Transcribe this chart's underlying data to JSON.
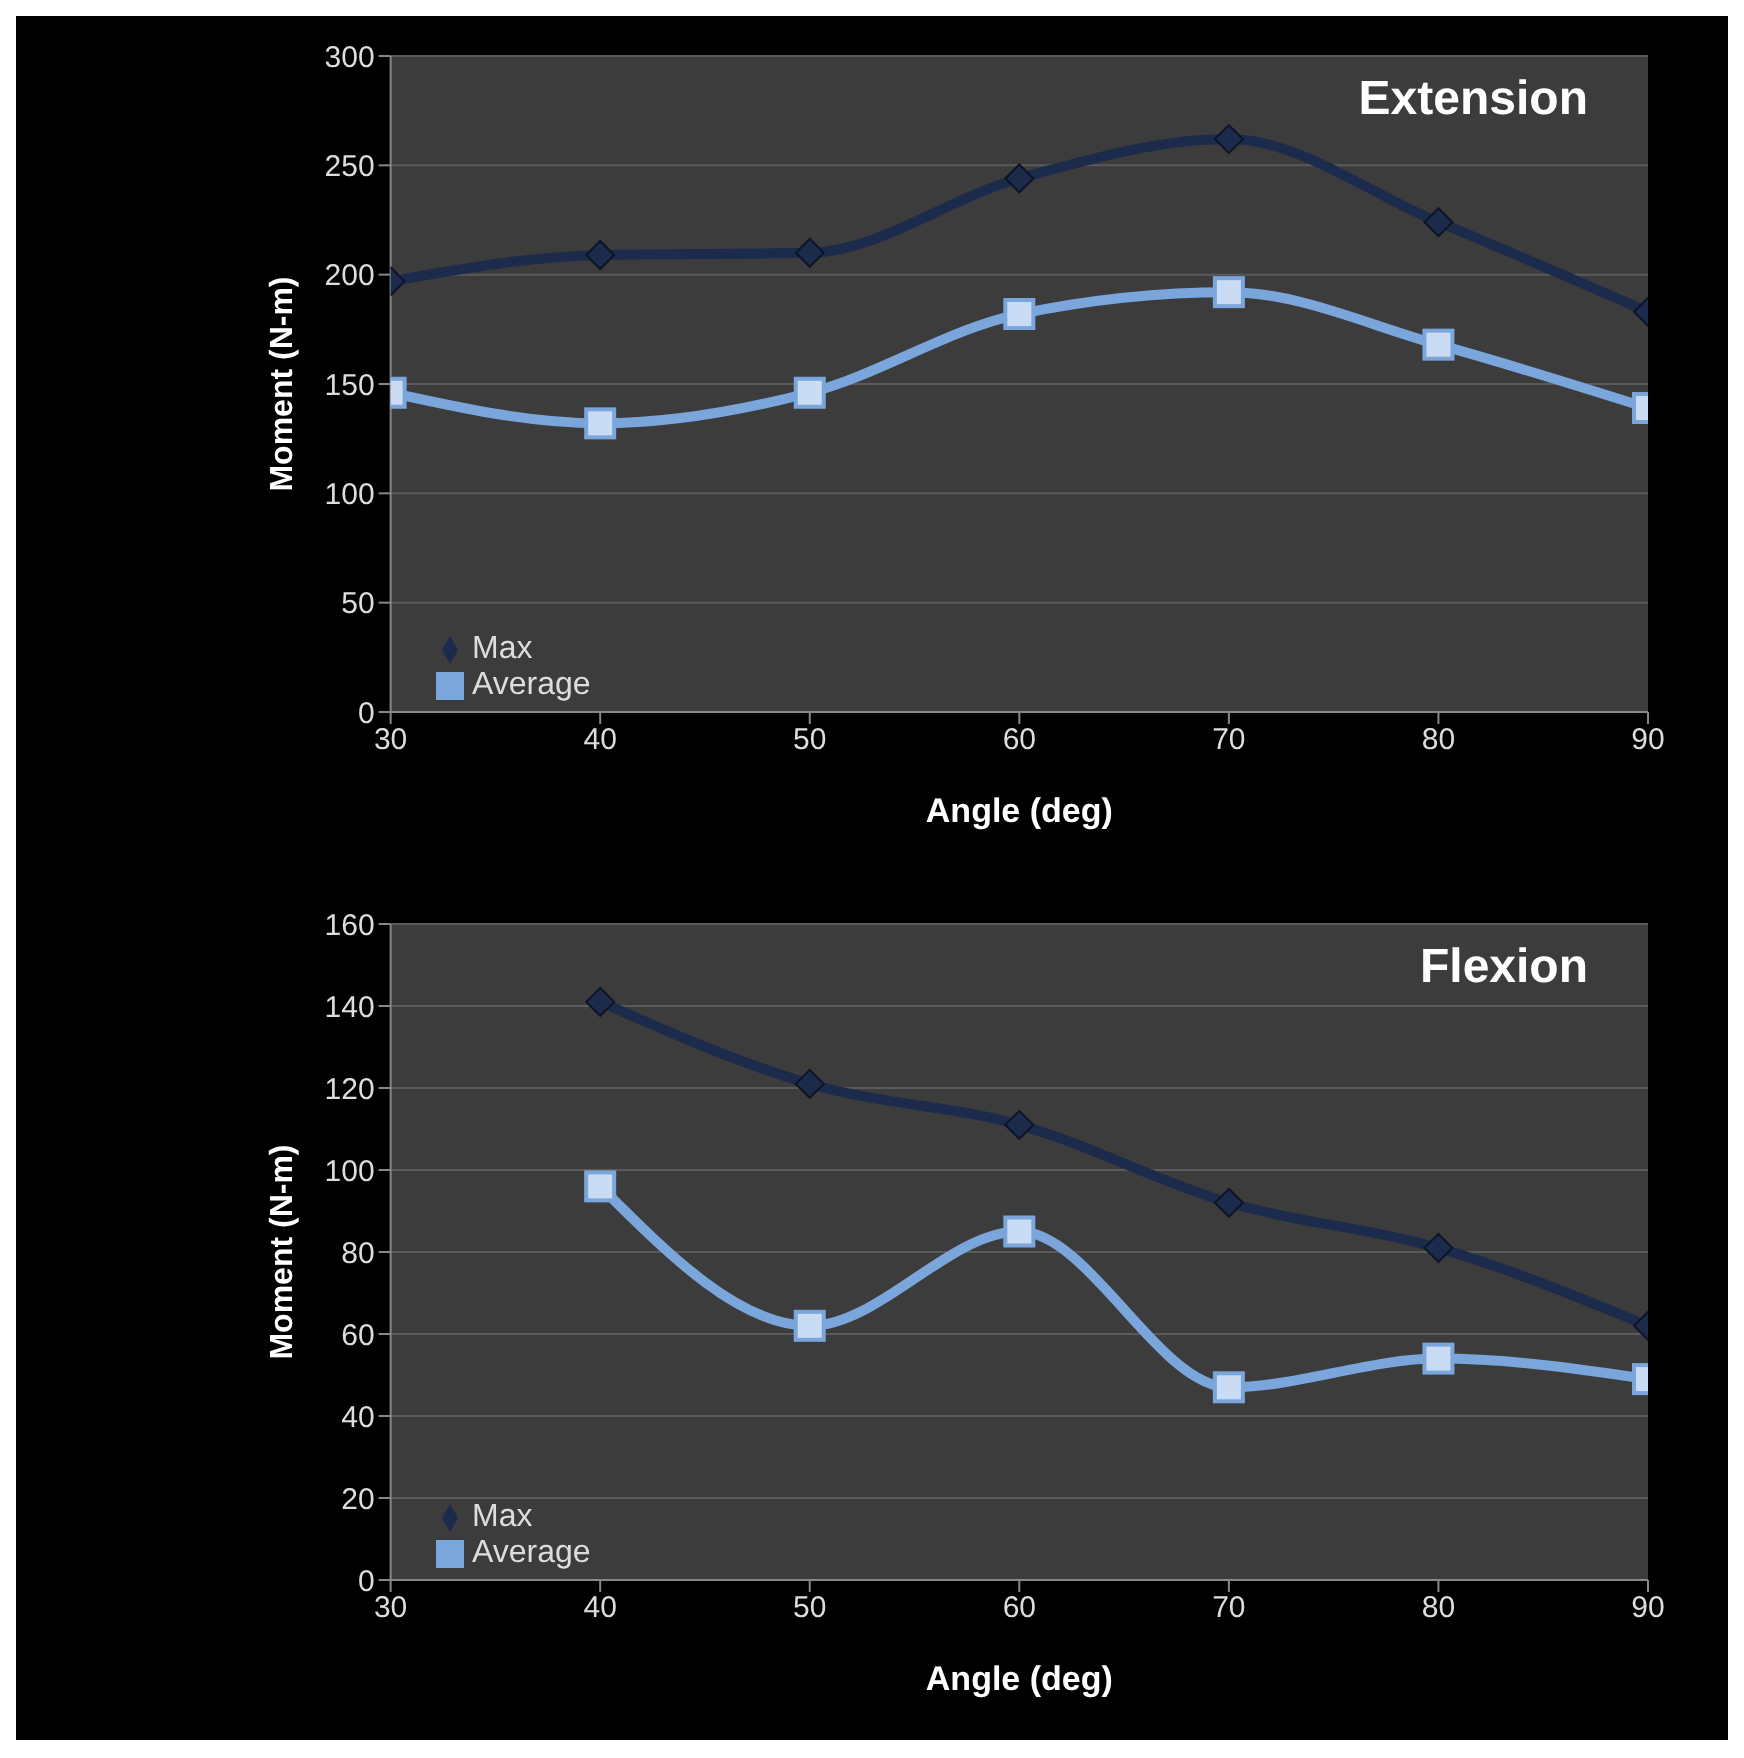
{
  "chart_data": [
    {
      "type": "line",
      "title": "Extension",
      "xlabel": "Angle (deg)",
      "ylabel": "Moment (N-m)",
      "x": [
        30,
        40,
        50,
        60,
        70,
        80,
        90
      ],
      "xlim": [
        30,
        90
      ],
      "xticks": [
        30,
        40,
        50,
        60,
        70,
        80,
        90
      ],
      "ylim": [
        0,
        300
      ],
      "yticks": [
        0,
        50,
        100,
        150,
        200,
        250,
        300
      ],
      "grid": "y",
      "legend": "bottom left",
      "series": [
        {
          "name": "Max",
          "color": "#1c2b4c",
          "marker": "diamond",
          "values": [
            197,
            209,
            210,
            244,
            262,
            224,
            183
          ]
        },
        {
          "name": "Average",
          "color": "#7aa6dc",
          "marker": "square",
          "values": [
            146,
            132,
            146,
            182,
            192,
            168,
            139
          ]
        }
      ]
    },
    {
      "type": "line",
      "title": "Flexion",
      "xlabel": "Angle (deg)",
      "ylabel": "Moment (N-m)",
      "x": [
        40,
        50,
        60,
        70,
        80,
        90
      ],
      "xlim": [
        30,
        90
      ],
      "xticks": [
        30,
        40,
        50,
        60,
        70,
        80,
        90
      ],
      "ylim": [
        0,
        160
      ],
      "yticks": [
        0,
        20,
        40,
        60,
        80,
        100,
        120,
        140,
        160
      ],
      "grid": "y",
      "legend": "bottom left",
      "series": [
        {
          "name": "Max",
          "color": "#1c2b4c",
          "marker": "diamond",
          "values": [
            141,
            121,
            111,
            92,
            81,
            62
          ]
        },
        {
          "name": "Average",
          "color": "#7aa6dc",
          "marker": "square",
          "values": [
            96,
            62,
            85,
            47,
            54,
            49
          ]
        }
      ]
    }
  ]
}
